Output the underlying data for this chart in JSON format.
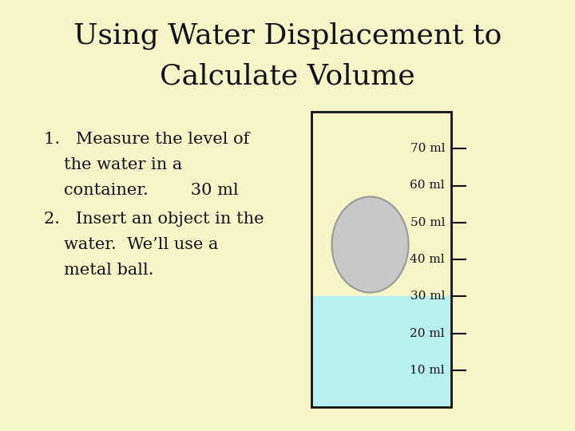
{
  "background_color": "#f5f5c8",
  "title_line1": "Using Water Displacement to",
  "title_line2": "Calculate Volume",
  "title_fontsize": 26,
  "title_color": "#111111",
  "body_fontsize": 15,
  "body_color": "#111111",
  "container_border_color": "#111111",
  "water_color": "#b8f0f0",
  "water_ml": 30,
  "ml_max": 80,
  "tick_levels": [
    10,
    20,
    30,
    40,
    50,
    60,
    70
  ],
  "ball_color": "#c8c8c8",
  "ball_edge_color": "#999999"
}
